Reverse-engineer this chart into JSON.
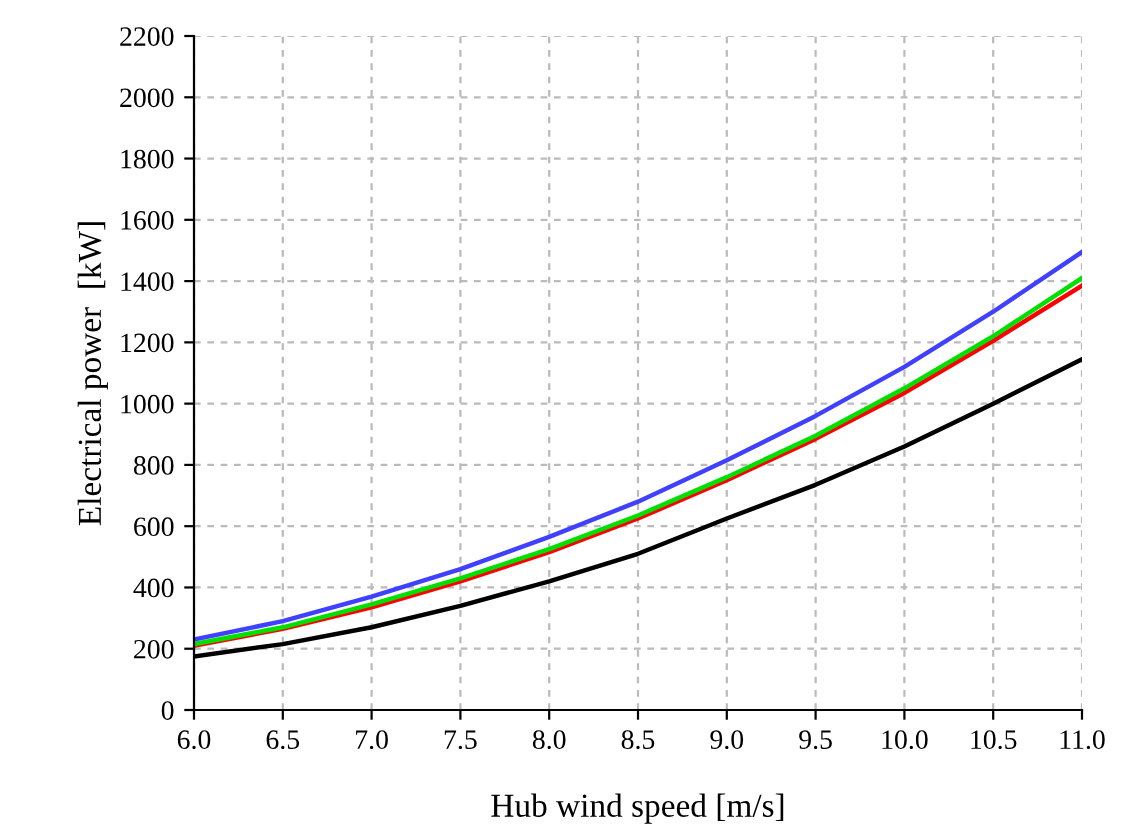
{
  "chart_data": {
    "type": "line",
    "xlabel": "Hub wind speed [m/s]",
    "ylabel": "Electrical power  [kW]",
    "x": [
      6.0,
      6.5,
      7.0,
      7.5,
      8.0,
      8.5,
      9.0,
      9.5,
      10.0,
      10.5,
      11.0
    ],
    "series": [
      {
        "color": "#000000",
        "values": [
          175,
          215,
          270,
          340,
          420,
          510,
          625,
          735,
          860,
          1000,
          1145
        ]
      },
      {
        "color": "#ff0000",
        "values": [
          210,
          265,
          335,
          420,
          515,
          625,
          750,
          885,
          1035,
          1205,
          1385
        ]
      },
      {
        "color": "#00e000",
        "values": [
          215,
          270,
          345,
          430,
          525,
          635,
          760,
          895,
          1050,
          1220,
          1410
        ]
      },
      {
        "color": "#4040ff",
        "values": [
          230,
          290,
          370,
          460,
          565,
          680,
          815,
          960,
          1120,
          1300,
          1495
        ]
      }
    ],
    "xlim": [
      6.0,
      11.0
    ],
    "xticks": [
      {
        "value": 6.0,
        "label": "6.0"
      },
      {
        "value": 6.5,
        "label": "6.5"
      },
      {
        "value": 7.0,
        "label": "7.0"
      },
      {
        "value": 7.5,
        "label": "7.5"
      },
      {
        "value": 8.0,
        "label": "8.0"
      },
      {
        "value": 8.5,
        "label": "8.5"
      },
      {
        "value": 9.0,
        "label": "9.0"
      },
      {
        "value": 9.5,
        "label": "9.5"
      },
      {
        "value": 10.0,
        "label": "10.0"
      },
      {
        "value": 10.5,
        "label": "10.5"
      },
      {
        "value": 11.0,
        "label": "11.0"
      }
    ],
    "ylim": [
      0,
      2200
    ],
    "yticks": [
      0,
      200,
      400,
      600,
      800,
      1000,
      1200,
      1400,
      1600,
      1800,
      2000,
      2200
    ],
    "grid": true,
    "marker": "none",
    "line_style": "solid"
  }
}
